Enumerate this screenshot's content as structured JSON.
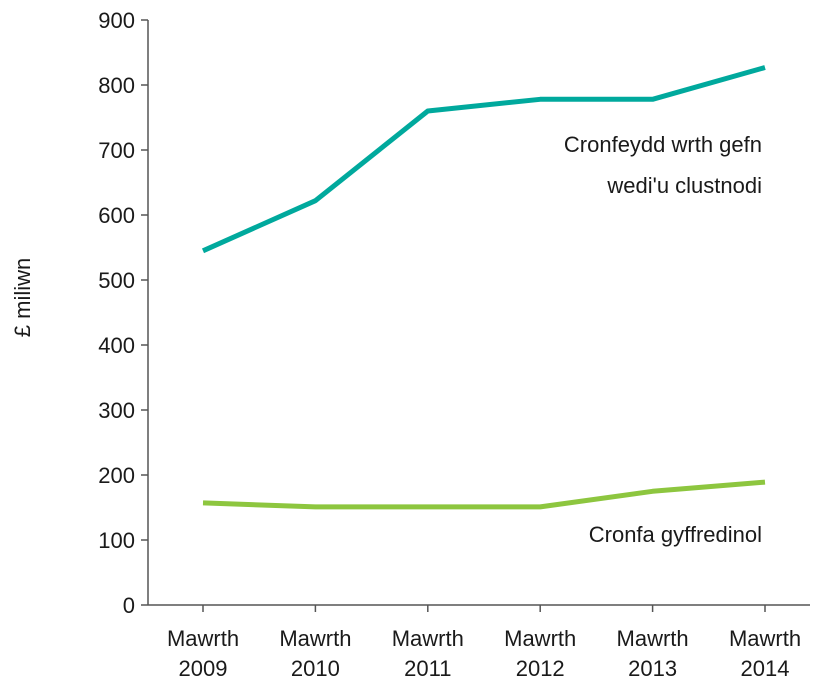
{
  "chart_data": {
    "type": "line",
    "ylabel": "£ miliwn",
    "ylim": [
      0,
      900
    ],
    "yticks": [
      0,
      100,
      200,
      300,
      400,
      500,
      600,
      700,
      800,
      900
    ],
    "categories": [
      [
        "Mawrth",
        "2009"
      ],
      [
        "Mawrth",
        "2010"
      ],
      [
        "Mawrth",
        "2011"
      ],
      [
        "Mawrth",
        "2012"
      ],
      [
        "Mawrth",
        "2013"
      ],
      [
        "Mawrth",
        "2014"
      ]
    ],
    "series": [
      {
        "name": "Cronfeydd wrth gefn wedi'u clustnodi",
        "label_lines": [
          "Cronfeydd wrth gefn",
          "wedi'u clustnodi"
        ],
        "color": "#00a99d",
        "values": [
          545,
          622,
          760,
          778,
          778,
          827
        ]
      },
      {
        "name": "Cronfa gyffredinol",
        "label_lines": [
          "Cronfa gyffredinol"
        ],
        "color": "#8dc63f",
        "values": [
          157,
          151,
          151,
          151,
          175,
          189
        ]
      }
    ],
    "grid": false,
    "legend": "direct labels"
  }
}
